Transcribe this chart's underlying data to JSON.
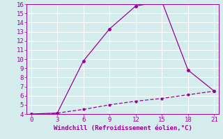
{
  "line1_x": [
    0,
    3,
    6,
    9,
    12,
    15,
    18,
    21
  ],
  "line1_y": [
    4.0,
    4.1,
    9.8,
    13.3,
    15.8,
    16.3,
    8.8,
    6.5
  ],
  "line2_x": [
    0,
    3,
    6,
    9,
    12,
    15,
    18,
    21
  ],
  "line2_y": [
    3.8,
    4.1,
    4.5,
    5.0,
    5.4,
    5.7,
    6.1,
    6.5
  ],
  "color": "#990099",
  "xlabel": "Windchill (Refroidissement éolien,°C)",
  "xlim": [
    -0.5,
    21.5
  ],
  "ylim": [
    4,
    16
  ],
  "xticks": [
    0,
    3,
    6,
    9,
    12,
    15,
    18,
    21
  ],
  "yticks": [
    4,
    5,
    6,
    7,
    8,
    9,
    10,
    11,
    12,
    13,
    14,
    15,
    16
  ],
  "bg_color": "#d4ecec",
  "grid_color": "#b8d8d8",
  "label_fontsize": 6.5
}
